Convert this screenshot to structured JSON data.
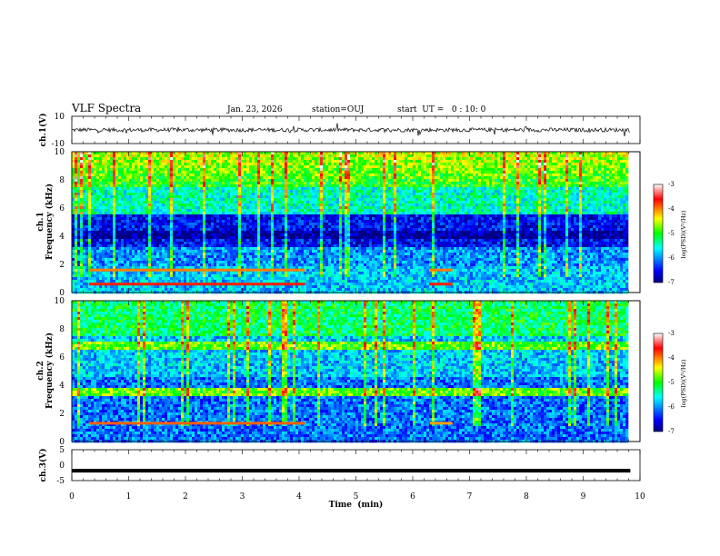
{
  "header": {
    "title": "VLF Spectra",
    "date": "Jan. 23, 2026",
    "station": "station=OUJ",
    "start_ut": "start  UT =   0 : 10: 0"
  },
  "chart_data": [
    {
      "type": "line",
      "name": "ch1-waveform",
      "ylabel": "ch.1(V)",
      "ylim": [
        -10,
        10
      ],
      "y_ticks": [
        "10",
        "-10"
      ],
      "xlim": [
        0,
        10
      ],
      "data_end_min": 9.83,
      "baseline": 0,
      "noise_amplitude": 1.5
    },
    {
      "type": "heatmap",
      "name": "ch1-spectrogram",
      "ylabel": "ch.1\nFrequency (kHz)",
      "ylim": [
        0,
        10
      ],
      "y_ticks": [
        "0",
        "2",
        "4",
        "6",
        "8",
        "10"
      ],
      "xlim": [
        0,
        10
      ],
      "data_end_min": 9.83,
      "colorbar": {
        "label": "log(PSD)(V²/Hz)",
        "range": [
          -7,
          -3
        ],
        "ticks": [
          "-3",
          "-4",
          "-5",
          "-6",
          "-7"
        ]
      },
      "lines": [
        {
          "freq_khz": 1.6,
          "start_min": 0.3,
          "end_min": 4.1,
          "color": "#ff8000"
        },
        {
          "freq_khz": 0.6,
          "start_min": 0.3,
          "end_min": 4.1,
          "color": "#ff2000"
        },
        {
          "freq_khz": 1.6,
          "start_min": 6.3,
          "end_min": 6.7,
          "color": "#ff8000"
        },
        {
          "freq_khz": 0.6,
          "start_min": 6.3,
          "end_min": 6.7,
          "color": "#ff2000"
        }
      ]
    },
    {
      "type": "heatmap",
      "name": "ch2-spectrogram",
      "ylabel": "ch.2\nFrequency (kHz)",
      "ylim": [
        0,
        10
      ],
      "y_ticks": [
        "0",
        "2",
        "4",
        "6",
        "8",
        "10"
      ],
      "xlim": [
        0,
        10
      ],
      "data_end_min": 9.83,
      "colorbar": {
        "label": "log(PSD)(V²/Hz)",
        "range": [
          -7,
          -3
        ],
        "ticks": [
          "-3",
          "-4",
          "-5",
          "-6",
          "-7"
        ]
      },
      "lines": [
        {
          "freq_khz": 1.3,
          "start_min": 0.3,
          "end_min": 4.1,
          "color": "#ff6000"
        },
        {
          "freq_khz": 1.3,
          "start_min": 6.3,
          "end_min": 6.7,
          "color": "#ffa000"
        }
      ]
    },
    {
      "type": "line",
      "name": "ch3-waveform",
      "ylabel": "ch.3(V)",
      "ylim": [
        -5,
        5
      ],
      "y_ticks": [
        "5",
        "0",
        "-5"
      ],
      "xlim": [
        0,
        10
      ],
      "data_end_min": 9.83,
      "baseline": -1.8,
      "noise_amplitude": 0
    }
  ],
  "x_axis": {
    "label": "Time  (min)",
    "range": [
      0,
      10
    ],
    "ticks": [
      "0",
      "1",
      "2",
      "3",
      "4",
      "5",
      "6",
      "7",
      "8",
      "9",
      "10"
    ]
  }
}
